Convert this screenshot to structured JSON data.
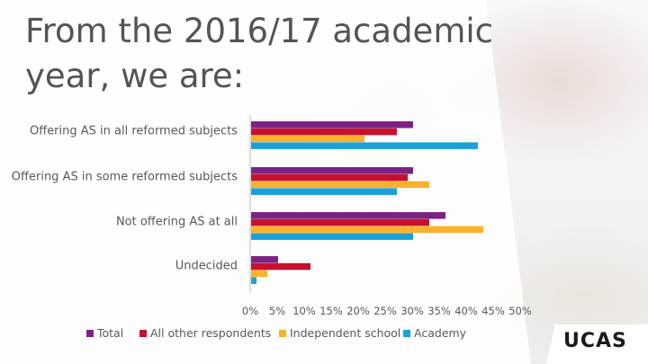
{
  "title": "From the 2016/17 academic year, we are:",
  "logo": "UCAS",
  "colors": {
    "Total": "#7b2383",
    "All other respondents": "#c8102e",
    "Independent school": "#fbb12b",
    "Academy": "#1ba1d8",
    "axis": "#bfbfbf",
    "text": "#595959"
  },
  "chart_data": {
    "type": "bar",
    "orientation": "horizontal",
    "categories": [
      "Offering AS in all reformed subjects",
      "Offering AS in some reformed subjects",
      "Not offering AS at all",
      "Undecided"
    ],
    "series": [
      {
        "name": "Total",
        "values": [
          30,
          30,
          36,
          5
        ]
      },
      {
        "name": "All other respondents",
        "values": [
          27,
          29,
          33,
          11
        ]
      },
      {
        "name": "Independent school",
        "values": [
          21,
          33,
          43,
          3
        ]
      },
      {
        "name": "Academy",
        "values": [
          42,
          27,
          30,
          1
        ]
      }
    ],
    "xlim": [
      0,
      50
    ],
    "xticks": [
      "0%",
      "5%",
      "10%",
      "15%",
      "20%",
      "25%",
      "30%",
      "35%",
      "40%",
      "45%",
      "50%"
    ],
    "grid": false,
    "legend_position": "bottom"
  }
}
